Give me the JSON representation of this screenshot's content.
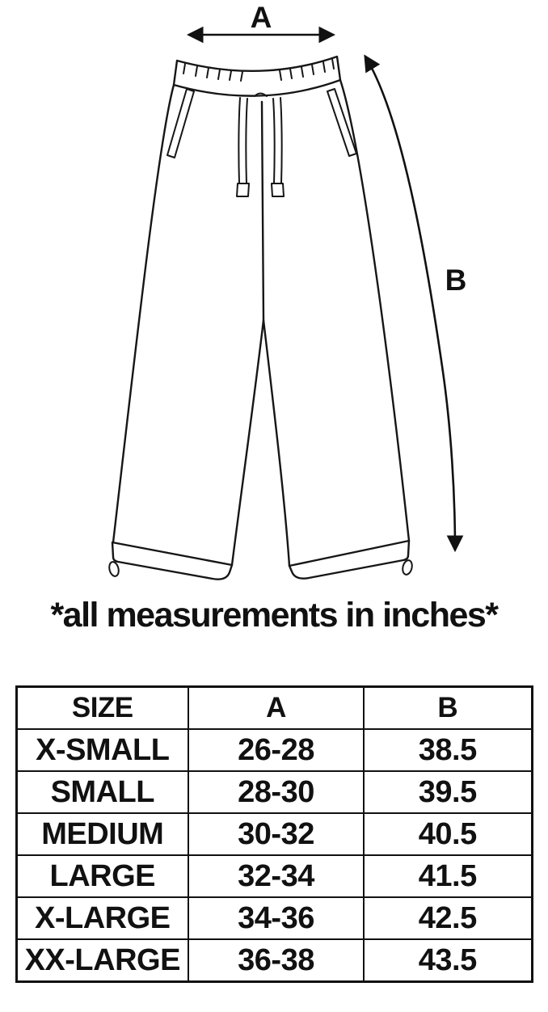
{
  "diagram": {
    "label_a": "A",
    "label_b": "B",
    "caption": "*all measurements in inches*"
  },
  "chart_data": {
    "type": "table",
    "columns": [
      "SIZE",
      "A",
      "B"
    ],
    "rows": [
      [
        "X-SMALL",
        "26-28",
        "38.5"
      ],
      [
        "SMALL",
        "28-30",
        "39.5"
      ],
      [
        "MEDIUM",
        "30-32",
        "40.5"
      ],
      [
        "LARGE",
        "32-34",
        "41.5"
      ],
      [
        "X-LARGE",
        "34-36",
        "42.5"
      ],
      [
        "XX-LARGE",
        "36-38",
        "43.5"
      ]
    ]
  },
  "colors": {
    "ink": "#111111",
    "background": "#ffffff"
  }
}
